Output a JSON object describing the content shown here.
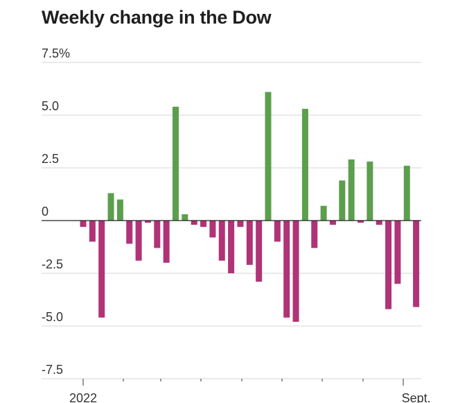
{
  "chart_data": {
    "type": "bar",
    "title": "Weekly change in the Dow",
    "xlabel": "",
    "ylabel": "",
    "ylim": [
      -7.5,
      7.5
    ],
    "y_ticks": [
      7.5,
      5.0,
      2.5,
      0,
      -2.5,
      -5.0,
      -7.5
    ],
    "y_tick_labels": [
      "7.5%",
      "5.0",
      "2.5",
      "0",
      "-2.5",
      "-5.0",
      "-7.5"
    ],
    "x_tick_labels": [
      {
        "label": "2022",
        "index": 0
      },
      {
        "label": "Sept.",
        "index": 36
      }
    ],
    "grid": true,
    "legend": "none",
    "colors": {
      "positive": "#5c9e4e",
      "negative": "#b03377",
      "grid": "#d6d6d6",
      "axis": "#222222"
    },
    "values": [
      -0.3,
      -1.0,
      -4.6,
      1.3,
      1.0,
      -1.1,
      -1.9,
      -0.1,
      -1.3,
      -2.0,
      5.4,
      0.3,
      -0.2,
      -0.3,
      -0.8,
      -1.9,
      -2.5,
      -0.3,
      -2.1,
      -2.9,
      6.1,
      -1.0,
      -4.6,
      -4.8,
      5.3,
      -1.3,
      0.7,
      -0.2,
      1.9,
      2.9,
      -0.1,
      2.8,
      -0.2,
      -4.2,
      -3.0,
      2.6,
      -4.1
    ]
  }
}
